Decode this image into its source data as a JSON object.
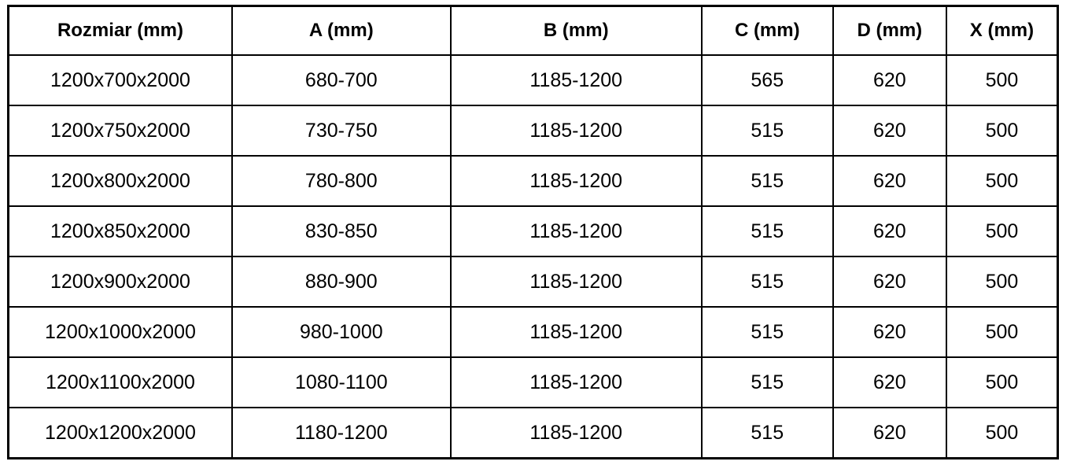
{
  "colors": {
    "border": "#000000",
    "text": "#000000",
    "background": "#ffffff"
  },
  "table": {
    "headers": [
      "Rozmiar (mm)",
      "A (mm)",
      "B (mm)",
      "C (mm)",
      "D (mm)",
      "X (mm)"
    ],
    "rows": [
      {
        "cells": [
          "1200x700x2000",
          "680-700",
          "1185-1200",
          "565",
          "620",
          "500"
        ]
      },
      {
        "cells": [
          "1200x750x2000",
          "730-750",
          "1185-1200",
          "515",
          "620",
          "500"
        ]
      },
      {
        "cells": [
          "1200x800x2000",
          "780-800",
          "1185-1200",
          "515",
          "620",
          "500"
        ]
      },
      {
        "cells": [
          "1200x850x2000",
          "830-850",
          "1185-1200",
          "515",
          "620",
          "500"
        ]
      },
      {
        "cells": [
          "1200x900x2000",
          "880-900",
          "1185-1200",
          "515",
          "620",
          "500"
        ]
      },
      {
        "cells": [
          "1200x1000x2000",
          "980-1000",
          "1185-1200",
          "515",
          "620",
          "500"
        ]
      },
      {
        "cells": [
          "1200x1100x2000",
          "1080-1100",
          "1185-1200",
          "515",
          "620",
          "500"
        ]
      },
      {
        "cells": [
          "1200x1200x2000",
          "1180-1200",
          "1185-1200",
          "515",
          "620",
          "500"
        ]
      }
    ]
  }
}
